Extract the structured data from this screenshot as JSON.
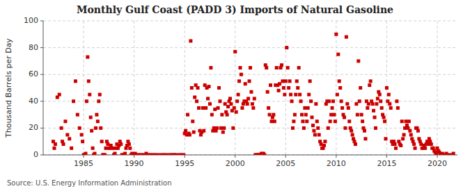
{
  "chart_data": {
    "type": "scatter",
    "title": "Monthly Gulf Coast (PADD 3) Imports of Natural Gasoline",
    "ylabel": "Thousand Barrels per Day",
    "source": "Source: U.S. Energy Information Administration",
    "color": "#cc0000",
    "marker": "square",
    "grid": true,
    "xlim": [
      1981,
      2022
    ],
    "ylim": [
      0,
      100
    ],
    "xticks": [
      1985,
      1990,
      1995,
      2000,
      2005,
      2010,
      2015,
      2020
    ],
    "yticks": [
      0,
      20,
      40,
      60,
      80,
      100
    ],
    "x": [
      1982.0,
      1982.1,
      1982.2,
      1982.4,
      1982.6,
      1982.8,
      1982.9,
      1983.0,
      1983.2,
      1983.4,
      1983.6,
      1983.8,
      1984.0,
      1984.2,
      1984.4,
      1984.6,
      1984.8,
      1984.9,
      1985.0,
      1985.1,
      1985.2,
      1985.3,
      1985.4,
      1985.5,
      1985.6,
      1985.7,
      1985.8,
      1985.9,
      1986.0,
      1986.1,
      1986.2,
      1986.3,
      1986.4,
      1986.5,
      1986.6,
      1986.7,
      1986.8,
      1986.9,
      1987.0,
      1987.1,
      1987.2,
      1987.3,
      1987.4,
      1987.5,
      1987.6,
      1987.7,
      1987.8,
      1987.9,
      1988.0,
      1988.1,
      1988.2,
      1988.3,
      1988.4,
      1988.5,
      1988.6,
      1988.7,
      1988.8,
      1988.9,
      1989.0,
      1989.1,
      1989.2,
      1989.3,
      1989.4,
      1989.5,
      1989.6,
      1989.7,
      1989.8,
      1989.9,
      1990.0,
      1990.1,
      1990.2,
      1990.4,
      1990.6,
      1990.8,
      1991.0,
      1991.2,
      1991.4,
      1991.6,
      1991.8,
      1992.0,
      1992.2,
      1992.5,
      1992.8,
      1993.0,
      1993.2,
      1993.5,
      1993.7,
      1993.9,
      1994.0,
      1994.2,
      1994.5,
      1994.7,
      1994.9,
      1995.0,
      1995.1,
      1995.2,
      1995.3,
      1995.4,
      1995.5,
      1995.6,
      1995.7,
      1995.8,
      1995.9,
      1996.0,
      1996.1,
      1996.2,
      1996.3,
      1996.4,
      1996.5,
      1996.6,
      1996.7,
      1996.8,
      1996.9,
      1997.0,
      1997.1,
      1997.2,
      1997.3,
      1997.4,
      1997.5,
      1997.6,
      1997.7,
      1997.8,
      1997.9,
      1998.0,
      1998.1,
      1998.2,
      1998.3,
      1998.4,
      1998.5,
      1998.6,
      1998.7,
      1998.8,
      1998.9,
      1999.0,
      1999.1,
      1999.2,
      1999.3,
      1999.4,
      1999.5,
      1999.6,
      1999.7,
      1999.8,
      1999.9,
      2000.0,
      2000.1,
      2000.2,
      2000.3,
      2000.4,
      2000.5,
      2000.6,
      2000.7,
      2000.8,
      2000.9,
      2001.0,
      2001.1,
      2001.2,
      2001.3,
      2001.4,
      2001.5,
      2001.6,
      2001.7,
      2001.8,
      2001.9,
      2002.0,
      2002.1,
      2002.2,
      2002.3,
      2002.4,
      2002.5,
      2002.6,
      2002.7,
      2002.8,
      2002.9,
      2003.0,
      2003.1,
      2003.2,
      2003.3,
      2003.4,
      2003.5,
      2003.6,
      2003.7,
      2003.8,
      2003.9,
      2004.0,
      2004.1,
      2004.2,
      2004.3,
      2004.4,
      2004.5,
      2004.6,
      2004.7,
      2004.8,
      2004.9,
      2005.0,
      2005.1,
      2005.2,
      2005.3,
      2005.4,
      2005.5,
      2005.6,
      2005.7,
      2005.8,
      2005.9,
      2006.0,
      2006.1,
      2006.2,
      2006.3,
      2006.4,
      2006.5,
      2006.6,
      2006.7,
      2006.8,
      2006.9,
      2007.0,
      2007.1,
      2007.2,
      2007.3,
      2007.4,
      2007.5,
      2007.6,
      2007.7,
      2007.8,
      2007.9,
      2008.0,
      2008.1,
      2008.2,
      2008.3,
      2008.4,
      2008.5,
      2008.6,
      2008.7,
      2008.8,
      2008.9,
      2009.0,
      2009.1,
      2009.2,
      2009.3,
      2009.4,
      2009.5,
      2009.6,
      2009.7,
      2009.8,
      2009.9,
      2010.0,
      2010.1,
      2010.2,
      2010.3,
      2010.4,
      2010.5,
      2010.6,
      2010.7,
      2010.8,
      2010.9,
      2011.0,
      2011.1,
      2011.2,
      2011.3,
      2011.4,
      2011.5,
      2011.6,
      2011.7,
      2011.8,
      2011.9,
      2012.0,
      2012.1,
      2012.2,
      2012.3,
      2012.4,
      2012.5,
      2012.6,
      2012.7,
      2012.8,
      2012.9,
      2013.0,
      2013.1,
      2013.2,
      2013.3,
      2013.4,
      2013.5,
      2013.6,
      2013.7,
      2013.8,
      2013.9,
      2014.0,
      2014.1,
      2014.2,
      2014.3,
      2014.4,
      2014.5,
      2014.6,
      2014.7,
      2014.8,
      2014.9,
      2015.0,
      2015.1,
      2015.2,
      2015.3,
      2015.4,
      2015.5,
      2015.6,
      2015.7,
      2015.8,
      2015.9,
      2016.0,
      2016.1,
      2016.2,
      2016.3,
      2016.4,
      2016.5,
      2016.6,
      2016.7,
      2016.8,
      2016.9,
      2017.0,
      2017.1,
      2017.2,
      2017.3,
      2017.4,
      2017.5,
      2017.6,
      2017.7,
      2017.8,
      2017.9,
      2018.0,
      2018.1,
      2018.2,
      2018.3,
      2018.4,
      2018.5,
      2018.6,
      2018.7,
      2018.8,
      2018.9,
      2019.0,
      2019.1,
      2019.2,
      2019.3,
      2019.4,
      2019.5,
      2019.6,
      2019.7,
      2019.8,
      2019.9,
      2020.0,
      2020.1,
      2020.2,
      2020.3,
      2020.5,
      2020.7,
      2020.9,
      2021.0,
      2021.3,
      2021.6
    ],
    "values": [
      10,
      5,
      8,
      43,
      45,
      20,
      10,
      8,
      25,
      15,
      12,
      5,
      40,
      55,
      30,
      20,
      15,
      10,
      0,
      0,
      1,
      40,
      73,
      55,
      45,
      28,
      18,
      5,
      0,
      1,
      20,
      30,
      25,
      40,
      45,
      20,
      10,
      0,
      0,
      0,
      5,
      10,
      8,
      5,
      5,
      7,
      5,
      5,
      0,
      1,
      5,
      8,
      5,
      7,
      10,
      8,
      0,
      0,
      0,
      1,
      5,
      7,
      10,
      8,
      5,
      0,
      1,
      0,
      0,
      1,
      0,
      0,
      0,
      0,
      0,
      1,
      0,
      0,
      0,
      0,
      0,
      0,
      0,
      0,
      0,
      0,
      0,
      0,
      0,
      0,
      0,
      0,
      0,
      16,
      18,
      15,
      30,
      16,
      15,
      85,
      50,
      25,
      17,
      43,
      52,
      40,
      50,
      35,
      18,
      15,
      17,
      35,
      18,
      52,
      35,
      50,
      42,
      51,
      38,
      65,
      30,
      18,
      20,
      34,
      18,
      20,
      35,
      50,
      40,
      20,
      30,
      17,
      20,
      38,
      32,
      30,
      36,
      40,
      42,
      38,
      33,
      20,
      35,
      77,
      32,
      40,
      45,
      55,
      65,
      60,
      35,
      38,
      40,
      53,
      40,
      38,
      42,
      55,
      65,
      47,
      38,
      35,
      42,
      0,
      0,
      0,
      0,
      0,
      0,
      1,
      0,
      1,
      0,
      67,
      65,
      47,
      35,
      30,
      52,
      25,
      28,
      30,
      25,
      52,
      65,
      52,
      48,
      53,
      65,
      67,
      55,
      50,
      45,
      55,
      80,
      65,
      50,
      55,
      45,
      40,
      20,
      25,
      30,
      45,
      55,
      50,
      65,
      45,
      40,
      30,
      25,
      20,
      35,
      30,
      25,
      35,
      45,
      55,
      40,
      28,
      22,
      18,
      15,
      38,
      25,
      20,
      15,
      10,
      8,
      5,
      5,
      7,
      10,
      38,
      40,
      20,
      40,
      25,
      30,
      35,
      40,
      30,
      25,
      90,
      45,
      75,
      55,
      50,
      40,
      35,
      30,
      28,
      20,
      88,
      38,
      35,
      25,
      20,
      18,
      15,
      12,
      10,
      8,
      38,
      30,
      70,
      40,
      50,
      30,
      25,
      20,
      18,
      12,
      40,
      35,
      38,
      52,
      55,
      40,
      38,
      33,
      28,
      20,
      38,
      42,
      47,
      45,
      40,
      35,
      30,
      28,
      25,
      12,
      50,
      40,
      45,
      38,
      35,
      10,
      8,
      10,
      8,
      5,
      40,
      35,
      10,
      8,
      7,
      25,
      12,
      15,
      20,
      25,
      22,
      20,
      25,
      18,
      15,
      12,
      10,
      8,
      5,
      20,
      20,
      18,
      12,
      10,
      8,
      5,
      5,
      7,
      5,
      8,
      10,
      8,
      12,
      10,
      8,
      5,
      5,
      3,
      2,
      1,
      5,
      3,
      2,
      0,
      1,
      0,
      1,
      0,
      0,
      1
    ]
  }
}
